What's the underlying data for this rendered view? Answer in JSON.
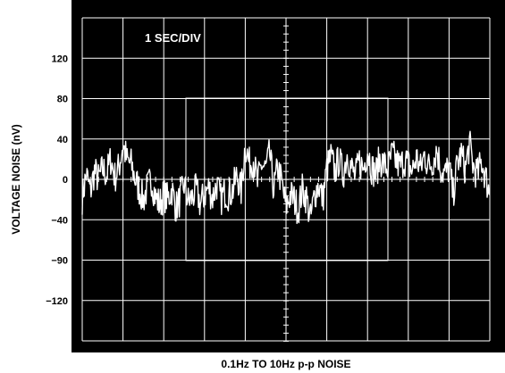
{
  "chart_data": {
    "type": "line",
    "title": "",
    "annotation": "1 SEC/DIV",
    "xlabel": "0.1Hz TO 10Hz p-p NOISE",
    "ylabel": "VOLTAGE NOISE (nV)",
    "x_divisions": 10,
    "x_units_per_division": "1 s",
    "xlim": [
      0,
      10
    ],
    "ytick_labels": [
      "120",
      "80",
      "40",
      "0",
      "−40",
      "−90",
      "−120"
    ],
    "grid": true,
    "colors": {
      "background": "#000000",
      "grid": "#ffffff",
      "trace": "#ffffff"
    },
    "series": [
      {
        "x": [
          0,
          0.1,
          0.2,
          0.3,
          0.4,
          0.5,
          0.6,
          0.7,
          0.8,
          0.9,
          1.0,
          1.1,
          1.2,
          1.3,
          1.4,
          1.5,
          1.6,
          1.7,
          1.8,
          1.9,
          2.0,
          2.1,
          2.2,
          2.3,
          2.4,
          2.5,
          2.6,
          2.7,
          2.8,
          2.9,
          3.0,
          3.1,
          3.2,
          3.3,
          3.4,
          3.5,
          3.6,
          3.7,
          3.8,
          3.9,
          4.0,
          4.1,
          4.2,
          4.3,
          4.4,
          4.5,
          4.6,
          4.7,
          4.8,
          4.9,
          5.0,
          5.1,
          5.2,
          5.3,
          5.4,
          5.5,
          5.6,
          5.7,
          5.8,
          5.9,
          6.0,
          6.1,
          6.2,
          6.3,
          6.4,
          6.5,
          6.6,
          6.7,
          6.8,
          6.9,
          7.0,
          7.1,
          7.2,
          7.3,
          7.4,
          7.5,
          7.6,
          7.7,
          7.8,
          7.9,
          8.0,
          8.1,
          8.2,
          8.3,
          8.4,
          8.5,
          8.6,
          8.7,
          8.8,
          8.9,
          9.0,
          9.1,
          9.2,
          9.3,
          9.4,
          9.5,
          9.6,
          9.7,
          9.8,
          9.9,
          10.0
        ],
        "values": [
          -18,
          5,
          -12,
          8,
          0,
          10,
          5,
          20,
          2,
          12,
          35,
          18,
          15,
          0,
          -10,
          -20,
          -8,
          0,
          -18,
          -25,
          -15,
          -20,
          -10,
          -28,
          -20,
          -5,
          -22,
          -18,
          -10,
          -25,
          -15,
          -8,
          -18,
          -5,
          -20,
          -12,
          -15,
          -10,
          5,
          -12,
          35,
          15,
          20,
          -5,
          15,
          10,
          25,
          -10,
          12,
          -5,
          -28,
          -15,
          -20,
          -30,
          -10,
          -18,
          -40,
          -15,
          -5,
          -20,
          10,
          22,
          8,
          20,
          5,
          25,
          12,
          2,
          18,
          10,
          30,
          12,
          5,
          20,
          15,
          10,
          25,
          18,
          12,
          20,
          15,
          8,
          22,
          10,
          25,
          12,
          18,
          30,
          10,
          5,
          12,
          -15,
          15,
          25,
          10,
          35,
          12,
          5,
          18,
          2,
          -15
        ]
      }
    ]
  }
}
